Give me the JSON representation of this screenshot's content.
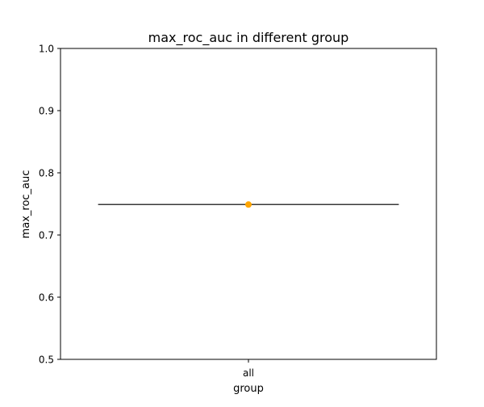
{
  "chart_data": {
    "type": "box",
    "title": "max_roc_auc in different group",
    "xlabel": "group",
    "ylabel": "max_roc_auc",
    "categories": [
      "all"
    ],
    "ylim": [
      0.5,
      1.0
    ],
    "yticks": [
      0.5,
      0.6,
      0.7,
      0.8,
      0.9,
      1.0
    ],
    "ytick_labels": [
      "0.5",
      "0.6",
      "0.7",
      "0.8",
      "0.9",
      "1.0"
    ],
    "series": [
      {
        "values": [
          0.749
        ],
        "median": [
          0.749
        ],
        "mean": [
          0.749
        ],
        "mean_color": "#ffa500",
        "line_color": "#3a3a3a"
      }
    ],
    "grid": false,
    "legend": "none"
  }
}
